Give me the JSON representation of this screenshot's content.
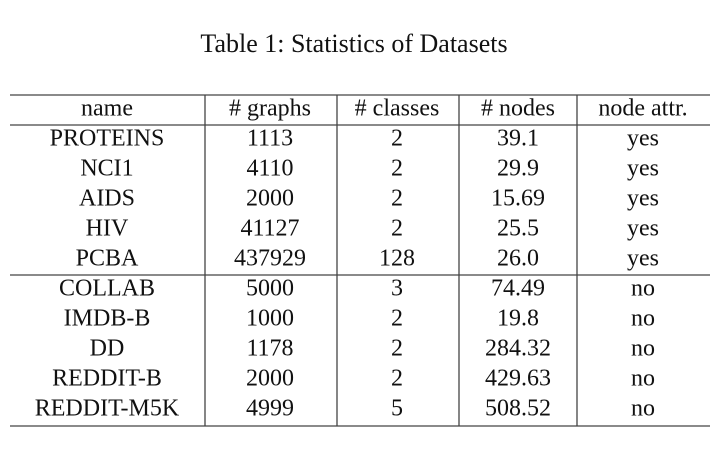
{
  "title": "Table 1: Statistics of Datasets",
  "table": {
    "header": [
      "name",
      "# graphs",
      "# classes",
      "# nodes",
      "node attr."
    ],
    "rows": [
      [
        "PROTEINS",
        "1113",
        "2",
        "39.1",
        "yes"
      ],
      [
        "NCI1",
        "4110",
        "2",
        "29.9",
        "yes"
      ],
      [
        "AIDS",
        "2000",
        "2",
        "15.69",
        "yes"
      ],
      [
        "HIV",
        "41127",
        "2",
        "25.5",
        "yes"
      ],
      [
        "PCBA",
        "437929",
        "128",
        "26.0",
        "yes"
      ],
      [
        "COLLAB",
        "5000",
        "3",
        "74.49",
        "no"
      ],
      [
        "IMDB-B",
        "1000",
        "2",
        "19.8",
        "no"
      ],
      [
        "DD",
        "1178",
        "2",
        "284.32",
        "no"
      ],
      [
        "REDDIT-B",
        "2000",
        "2",
        "429.63",
        "no"
      ],
      [
        "REDDIT-M5K",
        "4999",
        "5",
        "508.52",
        "no"
      ]
    ]
  }
}
